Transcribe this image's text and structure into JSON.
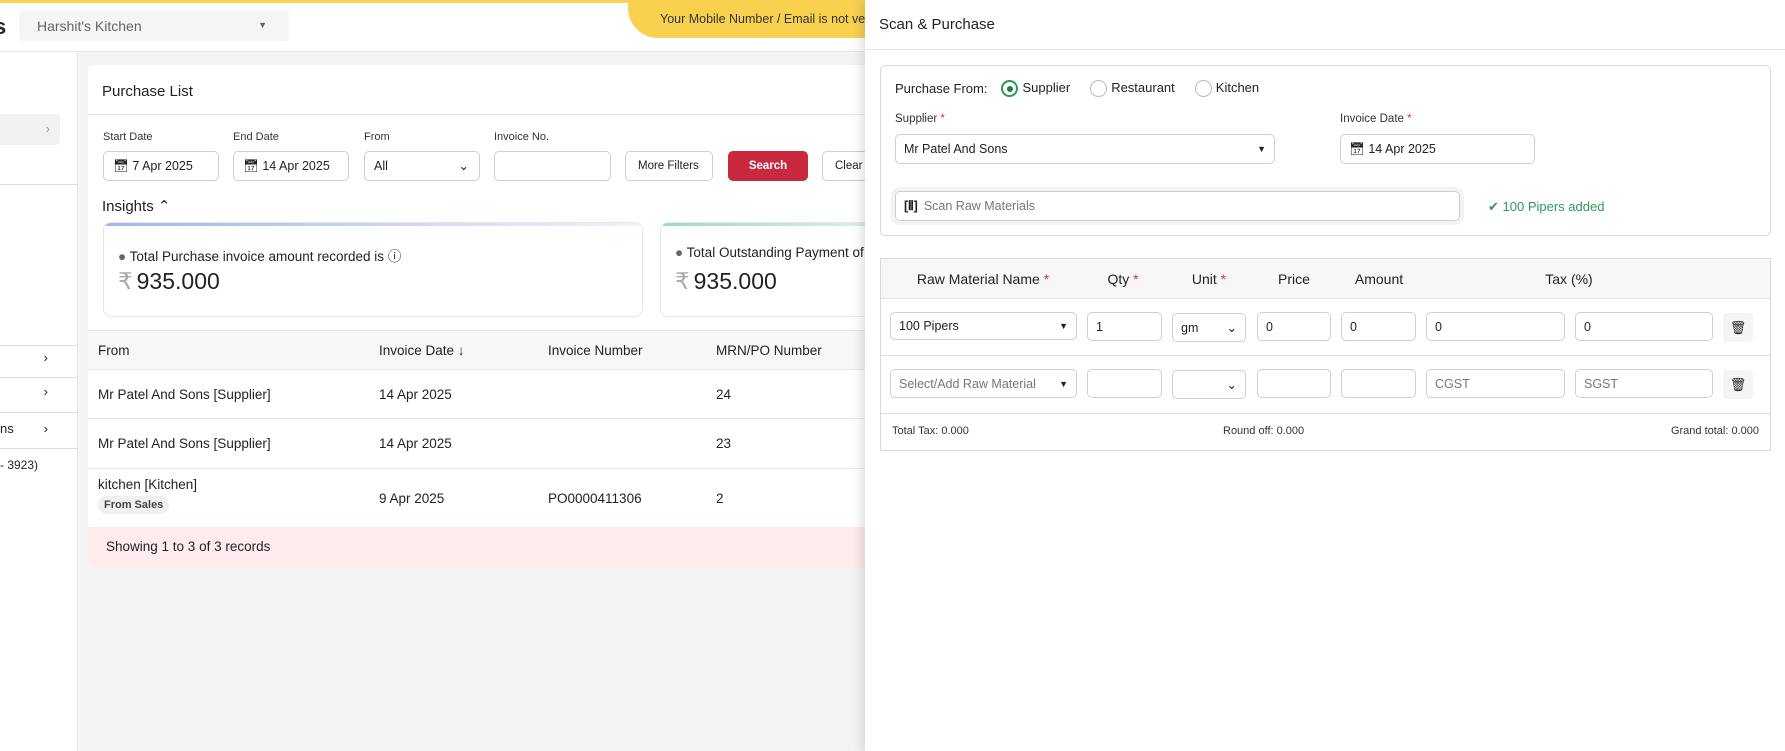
{
  "header": {
    "logo_fragment": "s",
    "store": "Harshit's Kitchen",
    "banner": "Your Mobile Number / Email is not verified"
  },
  "sidebar": {
    "items": [
      {
        "label": ""
      },
      {
        "label": ""
      },
      {
        "label": "ns"
      }
    ],
    "note": "- 3923)"
  },
  "purchase_list": {
    "title": "Purchase List",
    "filters": {
      "start_date_label": "Start Date",
      "start_date": "7 Apr 2025",
      "end_date_label": "End Date",
      "end_date": "14 Apr 2025",
      "from_label": "From",
      "from_value": "All",
      "invoice_label": "Invoice No.",
      "invoice_value": "",
      "more_filters": "More Filters",
      "search": "Search",
      "clear": "Clear"
    },
    "insights": {
      "label": "Insights",
      "cards": [
        {
          "title": "Total Purchase invoice amount recorded is",
          "value": "935.000",
          "currency": "₹"
        },
        {
          "title": "Total Outstanding Payment of",
          "value": "935.000",
          "currency": "₹"
        }
      ]
    },
    "columns": [
      "From",
      "Invoice Date ↓",
      "Invoice Number",
      "MRN/PO Number"
    ],
    "rows": [
      {
        "from": "Mr Patel And Sons [Supplier]",
        "date": "14 Apr 2025",
        "invoice": "",
        "mrn": "24",
        "tag": ""
      },
      {
        "from": "Mr Patel And Sons [Supplier]",
        "date": "14 Apr 2025",
        "invoice": "",
        "mrn": "23",
        "tag": ""
      },
      {
        "from": "kitchen [Kitchen]",
        "date": "9 Apr 2025",
        "invoice": "PO0000411306",
        "mrn": "2",
        "tag": "From Sales"
      }
    ],
    "footer": "Showing 1 to 3 of 3 records"
  },
  "drawer": {
    "title": "Scan & Purchase",
    "purchase_from_label": "Purchase From:",
    "options": [
      "Supplier",
      "Restaurant",
      "Kitchen"
    ],
    "selected_option": "Supplier",
    "supplier_label": "Supplier",
    "supplier_value": "Mr Patel And Sons",
    "invoice_date_label": "Invoice Date",
    "invoice_date": "14 Apr 2025",
    "scan_placeholder": "Scan Raw Materials",
    "scan_status": "100 Pipers added",
    "columns": {
      "name": "Raw Material Name",
      "qty": "Qty",
      "unit": "Unit",
      "price": "Price",
      "amount": "Amount",
      "tax": "Tax (%)"
    },
    "rows": [
      {
        "name": "100 Pipers",
        "qty": "1",
        "unit": "gm",
        "price": "0",
        "amount": "0",
        "cgst": "0",
        "sgst": "0"
      },
      {
        "name_placeholder": "Select/Add Raw Material",
        "qty": "",
        "unit": "",
        "price": "",
        "amount": "",
        "cgst_placeholder": "CGST",
        "sgst_placeholder": "SGST"
      }
    ],
    "total_tax": "Total Tax: 0.000",
    "round_off": "Round off: 0.000",
    "grand_total": "Grand total: 0.000"
  },
  "colors": {
    "accent_red": "#c8293f",
    "banner_yellow": "#f8d24f",
    "success_green": "#2a9a5a"
  }
}
